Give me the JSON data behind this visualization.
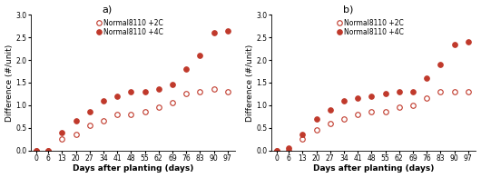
{
  "x_ticks": [
    0,
    6,
    13,
    20,
    27,
    34,
    41,
    48,
    55,
    62,
    69,
    76,
    83,
    90,
    97
  ],
  "panel_a": {
    "label": "a)",
    "x2c": [
      0,
      6,
      13,
      20,
      27,
      34,
      41,
      48,
      55,
      62,
      69,
      76,
      83,
      90,
      97
    ],
    "y2c": [
      0.0,
      0.0,
      0.25,
      0.35,
      0.55,
      0.65,
      0.8,
      0.8,
      0.85,
      0.95,
      1.05,
      1.25,
      1.3,
      1.35,
      1.3
    ],
    "x4c": [
      0,
      6,
      13,
      20,
      27,
      34,
      41,
      48,
      55,
      62,
      69,
      76,
      83,
      90,
      97
    ],
    "y4c": [
      0.0,
      0.0,
      0.4,
      0.65,
      0.85,
      1.1,
      1.2,
      1.3,
      1.3,
      1.35,
      1.45,
      1.8,
      2.1,
      2.6,
      2.65
    ]
  },
  "panel_b": {
    "label": "b)",
    "x2c": [
      0,
      6,
      13,
      20,
      27,
      34,
      41,
      48,
      55,
      62,
      69,
      76,
      83,
      90,
      97
    ],
    "y2c": [
      0.0,
      0.0,
      0.25,
      0.45,
      0.6,
      0.7,
      0.8,
      0.85,
      0.85,
      0.95,
      1.0,
      1.15,
      1.3,
      1.3,
      1.3
    ],
    "x4c": [
      0,
      6,
      13,
      20,
      27,
      34,
      41,
      48,
      55,
      62,
      69,
      76,
      83,
      90,
      97
    ],
    "y4c": [
      0.0,
      0.05,
      0.35,
      0.7,
      0.9,
      1.1,
      1.15,
      1.2,
      1.25,
      1.3,
      1.3,
      1.6,
      1.9,
      2.35,
      2.4
    ]
  },
  "legend_2c": "Normal8110 +2C",
  "legend_4c": "Normal8110 +4C",
  "xlabel": "Days after planting (days)",
  "ylabel": "Difference (#/unit)",
  "ylim": [
    0,
    3.0
  ],
  "yticks": [
    0.0,
    0.5,
    1.0,
    1.5,
    2.0,
    2.5,
    3.0
  ],
  "color": "#c0392b",
  "markersize": 4,
  "legend_fontsize": 5.5,
  "axis_fontsize": 6.5,
  "tick_fontsize": 5.5,
  "label_fontsize": 8
}
